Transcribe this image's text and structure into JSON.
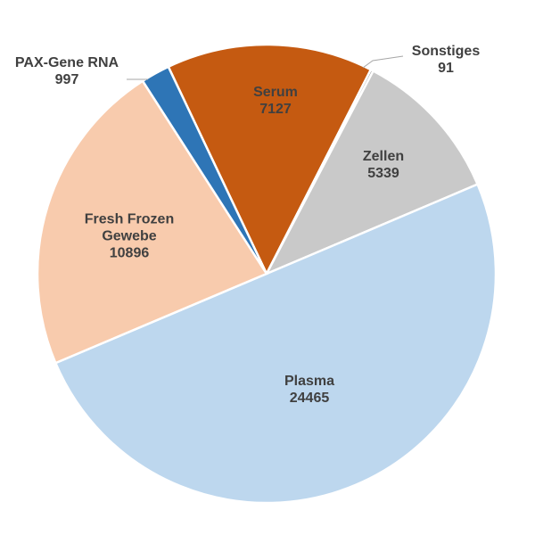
{
  "chart_data": {
    "type": "pie",
    "categories": [
      "Serum",
      "Sonstiges",
      "Zellen",
      "Plasma",
      "Fresh Frozen Gewebe",
      "PAX-Gene RNA"
    ],
    "values": [
      7127,
      91,
      5339,
      24465,
      10896,
      997
    ],
    "colors": [
      "#c55a11",
      "#7f7f7f",
      "#c9c9c9",
      "#bdd7ee",
      "#f8cbad",
      "#2e75b6"
    ]
  }
}
